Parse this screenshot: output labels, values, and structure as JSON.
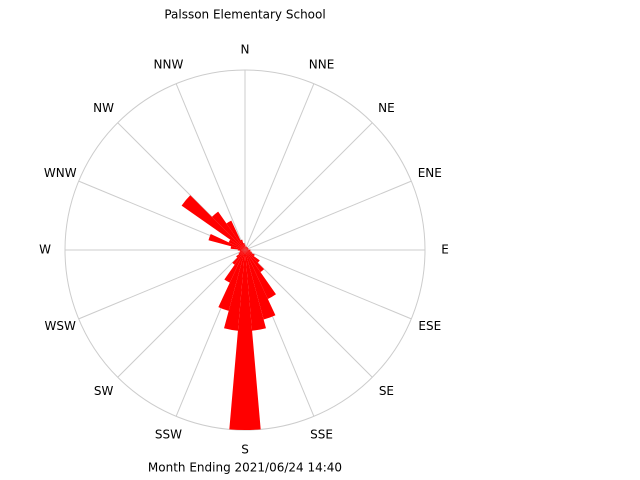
{
  "chart_data": {
    "type": "windrose",
    "title": "Palsson Elementary School",
    "footer": "Month Ending 2021/06/24 14:40",
    "x": [
      0,
      10,
      20,
      30,
      40,
      50,
      60,
      70,
      80,
      90,
      100,
      110,
      120,
      130,
      140,
      150,
      160,
      170,
      180,
      190,
      200,
      210,
      220,
      230,
      240,
      250,
      260,
      270,
      280,
      290,
      300,
      310,
      320,
      330,
      340,
      350
    ],
    "values": [
      3,
      2,
      2,
      2,
      2,
      2,
      2,
      2,
      2,
      3,
      3,
      4,
      6,
      10,
      15,
      30,
      40,
      45,
      100,
      45,
      35,
      20,
      10,
      6,
      4,
      3,
      3,
      4,
      8,
      21,
      10,
      43,
      26,
      18,
      6,
      4
    ],
    "color": "#ff0000",
    "rlim": [
      0,
      100
    ],
    "xticks": [
      {
        "value": 0,
        "label": "N"
      },
      {
        "value": 22.5,
        "label": "NNE"
      },
      {
        "value": 45,
        "label": "NE"
      },
      {
        "value": 67.5,
        "label": "ENE"
      },
      {
        "value": 90,
        "label": "E"
      },
      {
        "value": 112.5,
        "label": "ESE"
      },
      {
        "value": 135,
        "label": "SE"
      },
      {
        "value": 157.5,
        "label": "SSE"
      },
      {
        "value": 180,
        "label": "S"
      },
      {
        "value": 202.5,
        "label": "SSW"
      },
      {
        "value": 225,
        "label": "SW"
      },
      {
        "value": 247.5,
        "label": "WSW"
      },
      {
        "value": 270,
        "label": "W"
      },
      {
        "value": 292.5,
        "label": "WNW"
      },
      {
        "value": 315,
        "label": "NW"
      },
      {
        "value": 337.5,
        "label": "NNW"
      }
    ],
    "grid": true
  }
}
